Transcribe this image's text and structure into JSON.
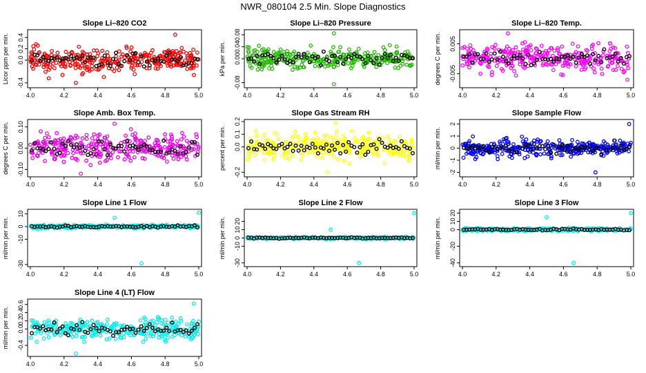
{
  "figure": {
    "title": "NWR_080104  2.5 Min. Slope Diagnostics"
  },
  "chart_data": [
    {
      "type": "scatter",
      "title": "Slope Li–820 CO2",
      "ylabel": "Licor ppm per min.",
      "color": "#ff0000",
      "xlim": [
        4.0,
        5.0
      ],
      "ylim": [
        -0.45,
        0.5
      ],
      "xticks": [
        "4.0",
        "4.2",
        "4.4",
        "4.6",
        "4.8",
        "5.0"
      ],
      "yticks": [
        {
          "v": -0.4,
          "l": "-0.4"
        },
        {
          "v": 0.0,
          "l": "0.0"
        },
        {
          "v": 0.2,
          "l": "0.2"
        },
        {
          "v": 0.4,
          "l": "0.4"
        }
      ],
      "spread": 0.15,
      "n": 320,
      "outliers": [
        [
          4.27,
          -0.4
        ],
        [
          4.86,
          0.45
        ]
      ],
      "seed": 11
    },
    {
      "type": "scatter",
      "title": "Slope Li–820 Pressure",
      "ylabel": "kPa per min.",
      "color": "#22bb00",
      "xlim": [
        4.0,
        5.0
      ],
      "ylim": [
        -0.09,
        0.09
      ],
      "xticks": [
        "4.0",
        "4.2",
        "4.4",
        "4.6",
        "4.8",
        "5.0"
      ],
      "yticks": [
        {
          "v": -0.08,
          "l": "-0.08"
        },
        {
          "v": 0.0,
          "l": "0.00"
        },
        {
          "v": 0.04,
          "l": "0.04"
        },
        {
          "v": 0.08,
          "l": "0.08"
        }
      ],
      "spread": 0.025,
      "n": 320,
      "outliers": [
        [
          4.52,
          0.085
        ],
        [
          4.52,
          -0.085
        ]
      ],
      "seed": 23
    },
    {
      "type": "scatter",
      "title": "Slope Li–820 Temp.",
      "ylabel": "degrees C per min.",
      "color": "#ff00ff",
      "xlim": [
        4.0,
        5.0
      ],
      "ylim": [
        -0.009,
        0.009
      ],
      "xticks": [
        "4.0",
        "4.2",
        "4.4",
        "4.6",
        "4.8",
        "5.0"
      ],
      "yticks": [
        {
          "v": -0.005,
          "l": "-0.005"
        },
        {
          "v": 0.005,
          "l": "0.005"
        }
      ],
      "spread": 0.003,
      "n": 320,
      "outliers": [
        [
          4.27,
          0.0085
        ],
        [
          4.98,
          -0.007
        ]
      ],
      "seed": 37
    },
    {
      "type": "scatter",
      "title": "Slope Amb. Box Temp.",
      "ylabel": "degrees C per min.",
      "color": "#ee00ee",
      "xlim": [
        4.0,
        5.0
      ],
      "ylim": [
        -0.125,
        0.125
      ],
      "xticks": [
        "4.0",
        "4.2",
        "4.4",
        "4.6",
        "4.8",
        "5.0"
      ],
      "yticks": [
        {
          "v": -0.1,
          "l": "-0.10"
        },
        {
          "v": 0.0,
          "l": "0.00"
        },
        {
          "v": 0.1,
          "l": "0.10"
        }
      ],
      "spread": 0.045,
      "n": 320,
      "outliers": [
        [
          4.3,
          -0.12
        ],
        [
          4.5,
          0.115
        ]
      ],
      "seed": 41
    },
    {
      "type": "scatter",
      "title": "Slope Gas Stream RH",
      "ylabel": "percent per min.",
      "color": "#ffff00",
      "xlim": [
        4.0,
        5.0
      ],
      "ylim": [
        -0.22,
        0.2
      ],
      "xticks": [
        "4.0",
        "4.2",
        "4.4",
        "4.6",
        "4.8",
        "5.0"
      ],
      "yticks": [
        {
          "v": -0.2,
          "l": "-0.2"
        },
        {
          "v": 0.0,
          "l": "0.0"
        },
        {
          "v": 0.1,
          "l": "0.1"
        },
        {
          "v": 0.2,
          "l": "0.2"
        }
      ],
      "spread": 0.07,
      "n": 320,
      "outliers": [
        [
          4.53,
          0.19
        ],
        [
          4.48,
          -0.2
        ]
      ],
      "seed": 53
    },
    {
      "type": "scatter",
      "title": "Slope Sample Flow",
      "ylabel": "ml/min per min.",
      "color": "#0000ff",
      "xlim": [
        4.0,
        5.0
      ],
      "ylim": [
        -2.2,
        2.2
      ],
      "xticks": [
        "4.0",
        "4.2",
        "4.4",
        "4.6",
        "4.8",
        "5.0"
      ],
      "yticks": [
        {
          "v": -2,
          "l": "-2"
        },
        {
          "v": -1,
          "l": "-1"
        },
        {
          "v": 0,
          "l": "0"
        },
        {
          "v": 1,
          "l": "1"
        },
        {
          "v": 2,
          "l": "2"
        }
      ],
      "spread": 0.5,
      "n": 320,
      "outliers": [
        [
          4.99,
          2.0
        ],
        [
          4.79,
          -2.0
        ]
      ],
      "seed": 67
    },
    {
      "type": "scatter",
      "title": "Slope Line 1 Flow",
      "ylabel": "ml/min per min.",
      "color": "#00eeee",
      "xlim": [
        4.0,
        5.0
      ],
      "ylim": [
        -30,
        12
      ],
      "xticks": [
        "4.0",
        "4.2",
        "4.4",
        "4.6",
        "4.8",
        "5.0"
      ],
      "yticks": [
        {
          "v": -30,
          "l": "-30"
        },
        {
          "v": -10,
          "l": "-10"
        },
        {
          "v": 0,
          "l": "0"
        },
        {
          "v": 10,
          "l": "10"
        }
      ],
      "spread": 0.9,
      "n": 320,
      "outliers": [
        [
          4.66,
          -29
        ],
        [
          5.0,
          11
        ],
        [
          4.5,
          7
        ]
      ],
      "seed": 71
    },
    {
      "type": "scatter",
      "title": "Slope Line 2 Flow",
      "ylabel": "ml/min per min.",
      "color": "#00eeee",
      "xlim": [
        4.0,
        5.0
      ],
      "ylim": [
        -32,
        32
      ],
      "xticks": [
        "4.0",
        "4.2",
        "4.4",
        "4.6",
        "4.8",
        "5.0"
      ],
      "yticks": [
        {
          "v": -30,
          "l": "-30"
        },
        {
          "v": -10,
          "l": "-10"
        },
        {
          "v": 0,
          "l": "0"
        },
        {
          "v": 10,
          "l": "10"
        },
        {
          "v": 20,
          "l": "20"
        }
      ],
      "spread": 0.9,
      "n": 320,
      "outliers": [
        [
          4.67,
          -30
        ],
        [
          5.0,
          30
        ],
        [
          4.5,
          10
        ]
      ],
      "seed": 83
    },
    {
      "type": "scatter",
      "title": "Slope Line 3 Flow",
      "ylabel": "ml/min per min.",
      "color": "#00eeee",
      "xlim": [
        4.0,
        5.0
      ],
      "ylim": [
        -42,
        22
      ],
      "xticks": [
        "4.0",
        "4.2",
        "4.4",
        "4.6",
        "4.8",
        "5.0"
      ],
      "yticks": [
        {
          "v": -40,
          "l": "-40"
        },
        {
          "v": -20,
          "l": "-20"
        },
        {
          "v": 0,
          "l": "0"
        },
        {
          "v": 10,
          "l": "10"
        },
        {
          "v": 20,
          "l": "20"
        }
      ],
      "spread": 1.2,
      "n": 320,
      "outliers": [
        [
          4.66,
          -40
        ],
        [
          5.0,
          20
        ],
        [
          4.5,
          15
        ]
      ],
      "seed": 97
    },
    {
      "type": "scatter",
      "title": "Slope Line 4 (LT) Flow",
      "ylabel": "ml/min per min.",
      "color": "#00eeee",
      "xlim": [
        4.0,
        5.0
      ],
      "ylim": [
        -0.62,
        0.68
      ],
      "xticks": [
        "4.0",
        "4.2",
        "4.4",
        "4.6",
        "4.8",
        "5.0"
      ],
      "yticks": [
        {
          "v": -0.4,
          "l": "-0.4"
        },
        {
          "v": 0.0,
          "l": "0.0"
        },
        {
          "v": 0.2,
          "l": "0.2"
        },
        {
          "v": 0.4,
          "l": "0.4"
        },
        {
          "v": 0.6,
          "l": "0.6"
        }
      ],
      "spread": 0.18,
      "n": 320,
      "outliers": [
        [
          4.27,
          -0.6
        ],
        [
          4.97,
          0.62
        ]
      ],
      "seed": 101
    }
  ]
}
